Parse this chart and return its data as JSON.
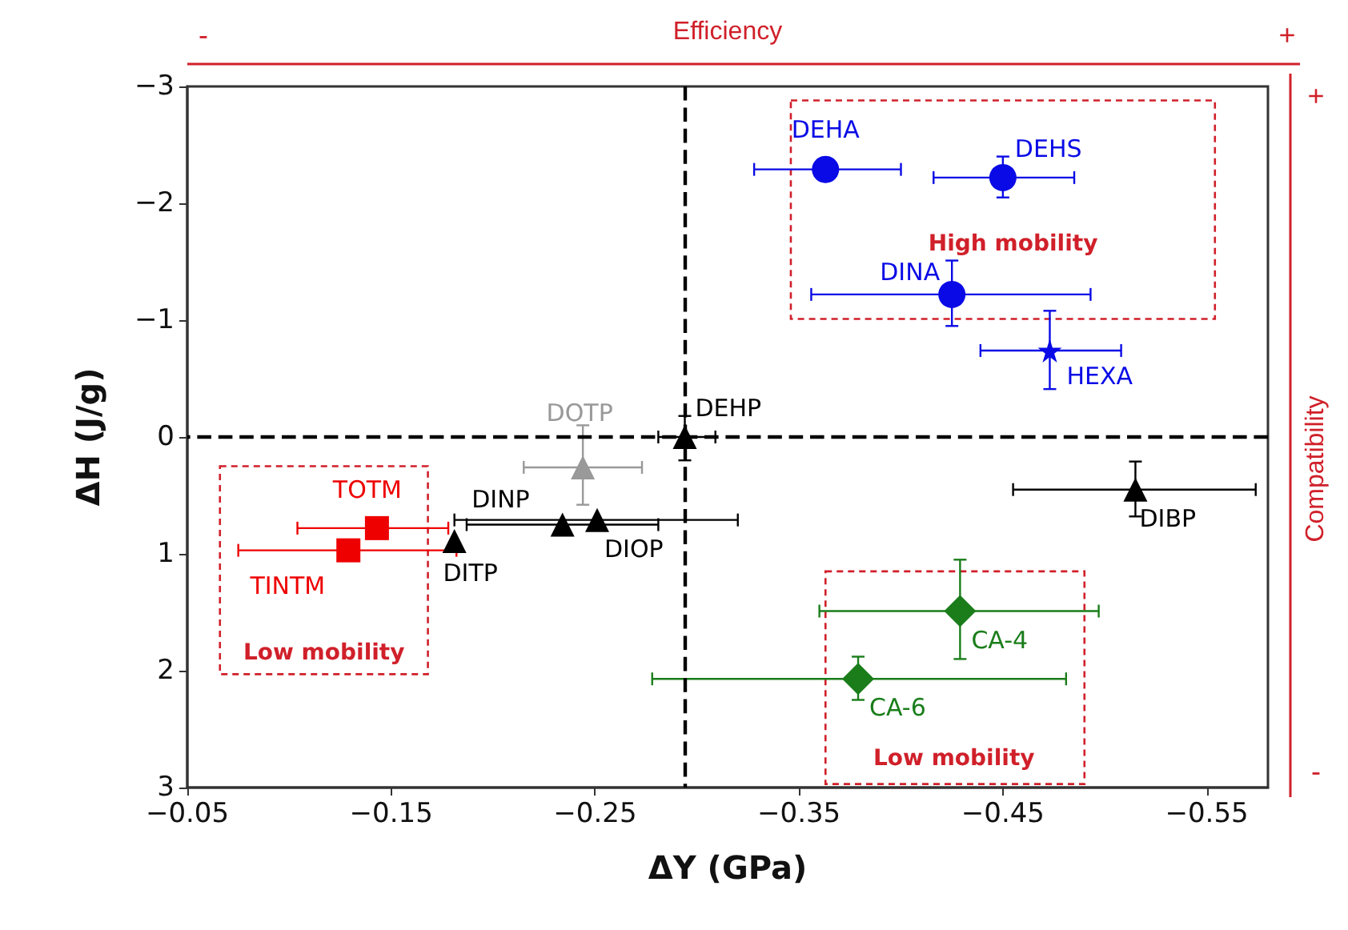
{
  "chart_data": {
    "type": "scatter",
    "xlabel": "ΔY (GPa)",
    "ylabel": "ΔH (J/g)",
    "xlim": [
      -0.05,
      -0.58
    ],
    "xticks": [
      -0.05,
      -0.15,
      -0.25,
      -0.35,
      -0.45,
      -0.55
    ],
    "ylim": [
      3,
      -3
    ],
    "yticks": [
      -3,
      -2,
      -1,
      0,
      1,
      2,
      3
    ],
    "grid": false,
    "legend": false,
    "series": [
      {
        "name": "DEHA",
        "color": "#0a0ae6",
        "marker": "circle",
        "x": [
          -0.363
        ],
        "values": [
          -2.29
        ],
        "xerrors": [
          [
            -0.328,
            -0.4
          ]
        ],
        "errors": [
          null
        ]
      },
      {
        "name": "DEHS",
        "color": "#0a0ae6",
        "marker": "circle",
        "x": [
          -0.45
        ],
        "values": [
          -2.22
        ],
        "xerrors": [
          [
            -0.416,
            -0.485
          ]
        ],
        "errors": [
          [
            -2.4,
            -2.05
          ]
        ]
      },
      {
        "name": "DINA",
        "color": "#0a0ae6",
        "marker": "circle",
        "x": [
          -0.425
        ],
        "values": [
          -1.22
        ],
        "xerrors": [
          [
            -0.356,
            -0.493
          ]
        ],
        "errors": [
          [
            -1.51,
            -0.95
          ]
        ]
      },
      {
        "name": "HEXA",
        "color": "#0a0ae6",
        "marker": "star",
        "x": [
          -0.473
        ],
        "values": [
          -0.74
        ],
        "xerrors": [
          [
            -0.439,
            -0.508
          ]
        ],
        "errors": [
          [
            -1.08,
            -0.41
          ]
        ]
      },
      {
        "name": "DOTP",
        "color": "#999999",
        "marker": "triangle",
        "x": [
          -0.244
        ],
        "values": [
          0.26
        ],
        "xerrors": [
          [
            -0.215,
            -0.273
          ]
        ],
        "errors": [
          [
            -0.1,
            0.58
          ]
        ]
      },
      {
        "name": "DEHP",
        "color": "#000000",
        "marker": "triangle",
        "x": [
          -0.294
        ],
        "values": [
          0
        ],
        "xerrors": [
          [
            -0.281,
            -0.309
          ]
        ],
        "errors": [
          [
            -0.18,
            0.2
          ]
        ]
      },
      {
        "name": "DINP",
        "color": "#000000",
        "marker": "triangle",
        "x": [
          -0.234
        ],
        "values": [
          0.75
        ],
        "xerrors": [
          [
            -0.187,
            -0.281
          ]
        ],
        "errors": [
          null
        ]
      },
      {
        "name": "DIOP",
        "color": "#000000",
        "marker": "triangle",
        "x": [
          -0.251
        ],
        "values": [
          0.71
        ],
        "xerrors": [
          [
            -0.181,
            -0.32
          ]
        ],
        "errors": [
          null
        ]
      },
      {
        "name": "DITP",
        "color": "#000000",
        "marker": "triangle",
        "x": [
          -0.181
        ],
        "values": [
          0.89
        ],
        "xerrors": [
          null
        ],
        "errors": [
          null
        ]
      },
      {
        "name": "DIBP",
        "color": "#000000",
        "marker": "triangle",
        "x": [
          -0.515
        ],
        "values": [
          0.45
        ],
        "xerrors": [
          [
            -0.455,
            -0.574
          ]
        ],
        "errors": [
          [
            0.21,
            0.68
          ]
        ]
      },
      {
        "name": "TOTM",
        "color": "#ee0000",
        "marker": "square",
        "x": [
          -0.143
        ],
        "values": [
          0.78
        ],
        "xerrors": [
          [
            -0.104,
            -0.178
          ]
        ],
        "errors": [
          null
        ]
      },
      {
        "name": "TINTM",
        "color": "#ee0000",
        "marker": "square",
        "x": [
          -0.129
        ],
        "values": [
          0.97
        ],
        "xerrors": [
          [
            -0.075,
            -0.182
          ]
        ],
        "errors": [
          null
        ]
      },
      {
        "name": "CA-4",
        "color": "#1a7d1a",
        "marker": "diamond",
        "x": [
          -0.429
        ],
        "values": [
          1.49
        ],
        "xerrors": [
          [
            -0.36,
            -0.497
          ]
        ],
        "errors": [
          [
            1.05,
            1.9
          ]
        ]
      },
      {
        "name": "CA-6",
        "color": "#1a7d1a",
        "marker": "diamond",
        "x": [
          -0.379
        ],
        "values": [
          2.07
        ],
        "xerrors": [
          [
            -0.278,
            -0.481
          ]
        ],
        "errors": [
          [
            1.88,
            2.25
          ]
        ]
      }
    ],
    "ref_lines": [
      {
        "axis": "x",
        "value": -0.294,
        "label": null,
        "color": "#000000",
        "line_style": "dashed"
      },
      {
        "axis": "y",
        "value": 0,
        "label": null,
        "color": "#000000",
        "line_style": "dashed"
      }
    ],
    "annotations": [
      "Efficiency",
      "-",
      "+",
      "Compatibility",
      "+",
      "-",
      "High mobility",
      "Low mobility",
      "Low mobility"
    ]
  }
}
